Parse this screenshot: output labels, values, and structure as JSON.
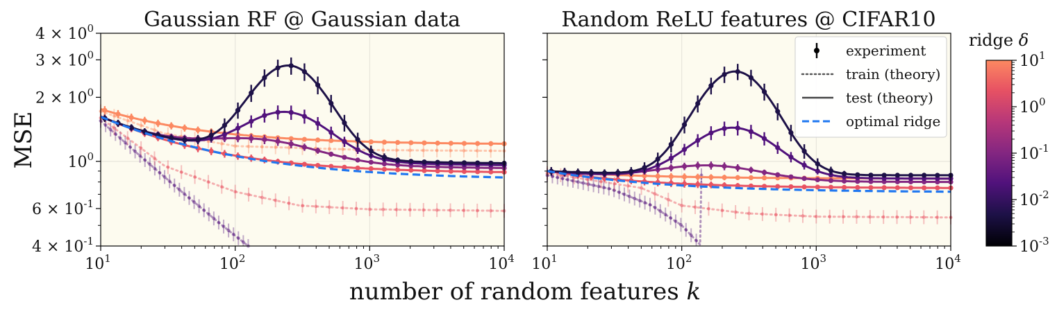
{
  "figure": {
    "shared_xlabel": "number of random features",
    "shared_xlabel_var": "k",
    "shared_ylabel": "MSE"
  },
  "colors": {
    "panel_bg": "#fdfbef",
    "grid": "#e3e1d8",
    "optimal": "#1f77f0",
    "ridge_1e-3": "#1d1147",
    "ridge_1e-2": "#51127c",
    "ridge_1e-1": "#832681",
    "ridge_1e0": "#e85362",
    "ridge_1e1": "#fc8961"
  },
  "legend": {
    "items": [
      {
        "label": "experiment",
        "kind": "marker"
      },
      {
        "label": "train (theory)",
        "kind": "dotted"
      },
      {
        "label": "test (theory)",
        "kind": "solid"
      },
      {
        "label": "optimal ridge",
        "kind": "dashed"
      }
    ]
  },
  "colorbar": {
    "title": "ridge",
    "title_var": "δ",
    "ticks": [
      {
        "base": "10",
        "exp": "1"
      },
      {
        "base": "10",
        "exp": "0"
      },
      {
        "base": "10",
        "exp": "-1"
      },
      {
        "base": "10",
        "exp": "-2"
      },
      {
        "base": "10",
        "exp": "-3"
      }
    ],
    "range": [
      -3,
      1
    ],
    "colormap": "magma"
  },
  "chart_data": [
    {
      "type": "line",
      "title": "Gaussian RF @ Gaussian data",
      "xlabel": "number of random features k",
      "ylabel": "MSE",
      "xscale": "log",
      "yscale": "log",
      "xlim": [
        10,
        10000
      ],
      "ylim": [
        0.4,
        4.0
      ],
      "x_ticks": [
        {
          "base": "10",
          "exp": "1"
        },
        {
          "base": "10",
          "exp": "2"
        },
        {
          "base": "10",
          "exp": "3"
        },
        {
          "base": "10",
          "exp": "4"
        }
      ],
      "y_ticks": [
        {
          "value": 4,
          "label": "4 × 10",
          "exp": "0"
        },
        {
          "value": 3,
          "label": "3 × 10",
          "exp": "0"
        },
        {
          "value": 2,
          "label": "2 × 10",
          "exp": "0"
        },
        {
          "value": 1,
          "label": "10",
          "exp": "0"
        },
        {
          "value": 0.6,
          "label": "6 × 10",
          "exp": "-1"
        },
        {
          "value": 0.4,
          "label": "4 × 10",
          "exp": "-1"
        }
      ],
      "show_y_tick_labels": true,
      "test_series": [
        {
          "ridge": "1e-3",
          "color_key": "ridge_1e-3",
          "baseline_start": 1.62,
          "baseline_end": 0.98,
          "peak_amp": 1.76,
          "peak_at_k": 250,
          "peak_width": 0.26,
          "start_err": 0.05,
          "peak_err": 0.25
        },
        {
          "ridge": "1e-2",
          "color_key": "ridge_1e-2",
          "baseline_start": 1.62,
          "baseline_end": 0.96,
          "peak_amp": 0.66,
          "peak_at_k": 240,
          "peak_width": 0.3,
          "start_err": 0.05,
          "peak_err": 0.12
        },
        {
          "ridge": "1e-1",
          "color_key": "ridge_1e-1",
          "baseline_start": 1.62,
          "baseline_end": 0.93,
          "peak_amp": 0.22,
          "peak_at_k": 160,
          "peak_width": 0.4,
          "start_err": 0.05,
          "peak_err": 0.05
        },
        {
          "ridge": "1e0",
          "color_key": "ridge_1e0",
          "baseline_start": 1.63,
          "baseline_end": 0.89,
          "peak_amp": 0.0,
          "peak_at_k": 100,
          "peak_width": 0.4,
          "start_err": 0.05,
          "peak_err": 0.03
        },
        {
          "ridge": "1e1",
          "color_key": "ridge_1e1",
          "baseline_start": 1.76,
          "baseline_end": 1.21,
          "peak_amp": 0.0,
          "peak_at_k": 100,
          "peak_width": 0.4,
          "start_err": 0.07,
          "peak_err": 0.03
        }
      ],
      "train_series": [
        {
          "ridge": "1e-2",
          "color_key": "ridge_1e-2",
          "points": [
            [
              10,
              1.55
            ],
            [
              20,
              1.05
            ],
            [
              40,
              0.72
            ],
            [
              80,
              0.5
            ],
            [
              125,
              0.4
            ]
          ]
        },
        {
          "ridge": "1e0",
          "color_key": "ridge_1e0",
          "points": [
            [
              10,
              1.6
            ],
            [
              30,
              0.95
            ],
            [
              100,
              0.72
            ],
            [
              300,
              0.62
            ],
            [
              1000,
              0.595
            ],
            [
              10000,
              0.585
            ]
          ]
        },
        {
          "ridge": "1e1",
          "color_key": "ridge_1e1",
          "points": [
            [
              10,
              1.72
            ],
            [
              30,
              1.35
            ],
            [
              100,
              1.18
            ],
            [
              1000,
              1.13
            ],
            [
              10000,
              1.12
            ]
          ]
        }
      ],
      "optimal_ridge": {
        "start": 1.62,
        "end": 0.84
      }
    },
    {
      "type": "line",
      "title": "Random ReLU features @ CIFAR10",
      "xlabel": "number of random features k",
      "ylabel": "MSE",
      "xscale": "log",
      "yscale": "log",
      "xlim": [
        10,
        10000
      ],
      "ylim": [
        0.4,
        4.0
      ],
      "x_ticks": [
        {
          "base": "10",
          "exp": "1"
        },
        {
          "base": "10",
          "exp": "2"
        },
        {
          "base": "10",
          "exp": "3"
        },
        {
          "base": "10",
          "exp": "4"
        }
      ],
      "y_ticks": [
        {
          "value": 4,
          "label": "",
          "exp": ""
        },
        {
          "value": 3,
          "label": "",
          "exp": ""
        },
        {
          "value": 2,
          "label": "",
          "exp": ""
        },
        {
          "value": 1,
          "label": "",
          "exp": ""
        },
        {
          "value": 0.6,
          "label": "",
          "exp": ""
        },
        {
          "value": 0.4,
          "label": "",
          "exp": ""
        }
      ],
      "show_y_tick_labels": false,
      "test_series": [
        {
          "ridge": "1e-3",
          "color_key": "ridge_1e-3",
          "baseline_start": 0.9,
          "baseline_end": 0.86,
          "peak_amp": 1.78,
          "peak_at_k": 250,
          "peak_width": 0.26,
          "start_err": 0.03,
          "peak_err": 0.22
        },
        {
          "ridge": "1e-2",
          "color_key": "ridge_1e-2",
          "baseline_start": 0.9,
          "baseline_end": 0.83,
          "peak_amp": 0.6,
          "peak_at_k": 240,
          "peak_width": 0.3,
          "start_err": 0.03,
          "peak_err": 0.1
        },
        {
          "ridge": "1e-1",
          "color_key": "ridge_1e-1",
          "baseline_start": 0.9,
          "baseline_end": 0.8,
          "peak_amp": 0.14,
          "peak_at_k": 160,
          "peak_width": 0.38,
          "start_err": 0.03,
          "peak_err": 0.03
        },
        {
          "ridge": "1e0",
          "color_key": "ridge_1e0",
          "baseline_start": 0.9,
          "baseline_end": 0.75,
          "peak_amp": 0.0,
          "peak_at_k": 100,
          "peak_width": 0.4,
          "start_err": 0.02,
          "peak_err": 0.02
        },
        {
          "ridge": "1e1",
          "color_key": "ridge_1e1",
          "baseline_start": 0.9,
          "baseline_end": 0.83,
          "peak_amp": 0.0,
          "peak_at_k": 100,
          "peak_width": 0.4,
          "start_err": 0.02,
          "peak_err": 0.02
        }
      ],
      "train_series": [
        {
          "ridge": "1e-2",
          "color_key": "ridge_1e-2",
          "points": [
            [
              10,
              0.86
            ],
            [
              30,
              0.74
            ],
            [
              60,
              0.62
            ],
            [
              100,
              0.5
            ],
            [
              140,
              0.4
            ]
          ]
        },
        {
          "ridge": "1e0",
          "color_key": "ridge_1e0",
          "points": [
            [
              10,
              0.88
            ],
            [
              50,
              0.75
            ],
            [
              100,
              0.62
            ],
            [
              300,
              0.57
            ],
            [
              1000,
              0.55
            ],
            [
              10000,
              0.545
            ]
          ]
        }
      ],
      "optimal_ridge": {
        "start": 0.9,
        "end": 0.72
      }
    }
  ]
}
